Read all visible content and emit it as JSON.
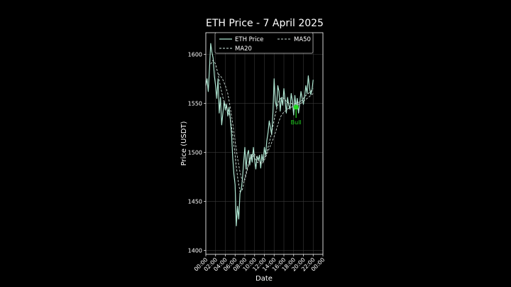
{
  "chart_data": {
    "type": "line",
    "title": "ETH Price - 7 April 2025",
    "xlabel": "Date",
    "ylabel": "Price (USDT)",
    "x_ticks": [
      "00:00",
      "02:00",
      "04:00",
      "06:00",
      "08:00",
      "10:00",
      "12:00",
      "14:00",
      "16:00",
      "18:00",
      "20:00",
      "22:00",
      "00:00"
    ],
    "y_ticks": [
      1400,
      1450,
      1500,
      1550,
      1600
    ],
    "xlim_hours": [
      0,
      24
    ],
    "ylim": [
      1396,
      1622
    ],
    "grid": true,
    "legend_position": "top",
    "series": [
      {
        "name": "ETH Price",
        "style": "solid",
        "color": "#aee6d2",
        "x": [
          0,
          0.25,
          0.5,
          0.75,
          1,
          1.25,
          1.5,
          1.75,
          2,
          2.25,
          2.5,
          2.75,
          3,
          3.25,
          3.5,
          3.75,
          4,
          4.25,
          4.5,
          4.75,
          5,
          5.25,
          5.5,
          5.75,
          6,
          6.25,
          6.5,
          6.75,
          7,
          7.25,
          7.5,
          7.75,
          8,
          8.25,
          8.5,
          8.75,
          9,
          9.25,
          9.5,
          9.75,
          10,
          10.25,
          10.5,
          10.75,
          11,
          11.25,
          11.5,
          11.75,
          12,
          12.25,
          12.5,
          12.75,
          13,
          13.25,
          13.5,
          13.75,
          14,
          14.25,
          14.5,
          14.75,
          15,
          15.25,
          15.5,
          15.75,
          16,
          16.25,
          16.5,
          16.75,
          17,
          17.25,
          17.5,
          17.75,
          18,
          18.25,
          18.5,
          18.75,
          19,
          19.25,
          19.5,
          19.75,
          20,
          20.25,
          20.5,
          20.75,
          21,
          21.25,
          21.5,
          21.75,
          22
        ],
        "y": [
          1568,
          1575,
          1562,
          1585,
          1611,
          1602,
          1596,
          1578,
          1568,
          1555,
          1575,
          1540,
          1556,
          1528,
          1540,
          1552,
          1543,
          1549,
          1537,
          1546,
          1535,
          1520,
          1496,
          1478,
          1467,
          1425,
          1445,
          1432,
          1458,
          1462,
          1472,
          1490,
          1505,
          1483,
          1498,
          1502,
          1487,
          1498,
          1490,
          1505,
          1492,
          1483,
          1496,
          1492,
          1497,
          1484,
          1498,
          1490,
          1505,
          1497,
          1512,
          1520,
          1532,
          1525,
          1518,
          1540,
          1575,
          1552,
          1546,
          1568,
          1562,
          1542,
          1556,
          1548,
          1565,
          1553,
          1540,
          1556,
          1548,
          1544,
          1560,
          1552,
          1538,
          1558,
          1546,
          1555,
          1540,
          1550,
          1562,
          1555,
          1549,
          1557,
          1568,
          1560,
          1578,
          1566,
          1559,
          1563,
          1574
        ]
      },
      {
        "name": "MA20",
        "style": "dashed",
        "color": "#d4ede3",
        "x": [
          1,
          1.5,
          2,
          2.5,
          3,
          3.5,
          4,
          4.5,
          5,
          5.5,
          6,
          6.5,
          7,
          7.5,
          8,
          8.5,
          9,
          9.5,
          10,
          10.5,
          11,
          11.5,
          12,
          12.5,
          13,
          13.5,
          14,
          14.5,
          15,
          15.5,
          16,
          16.5,
          17,
          17.5,
          18,
          18.5,
          19,
          19.5,
          20,
          20.5,
          21,
          21.5,
          22
        ],
        "y": [
          1590,
          1594,
          1590,
          1580,
          1567,
          1556,
          1548,
          1544,
          1535,
          1518,
          1497,
          1475,
          1460,
          1462,
          1474,
          1484,
          1493,
          1498,
          1495,
          1490,
          1489,
          1491,
          1494,
          1500,
          1510,
          1520,
          1533,
          1544,
          1553,
          1556,
          1555,
          1552,
          1550,
          1550,
          1549,
          1550,
          1551,
          1552,
          1555,
          1558,
          1560,
          1562,
          1565
        ]
      },
      {
        "name": "MA50",
        "style": "dashed",
        "color": "#c8d8d2",
        "x": [
          2.5,
          3,
          3.5,
          4,
          4.5,
          5,
          5.5,
          6,
          6.5,
          7,
          7.5,
          8,
          8.5,
          9,
          9.5,
          10,
          10.5,
          11,
          11.5,
          12,
          12.5,
          13,
          13.5,
          14,
          14.5,
          15,
          15.5,
          16,
          16.5,
          17,
          17.5,
          18,
          18.5,
          19,
          19.5,
          20,
          20.5,
          21,
          21.5,
          22
        ],
        "y": [
          1580,
          1578,
          1574,
          1568,
          1560,
          1546,
          1530,
          1512,
          1494,
          1480,
          1470,
          1472,
          1482,
          1492,
          1496,
          1498,
          1494,
          1490,
          1488,
          1492,
          1498,
          1504,
          1510,
          1516,
          1524,
          1532,
          1538,
          1541,
          1543,
          1545,
          1546,
          1547,
          1548,
          1549,
          1550,
          1552,
          1554,
          1556,
          1558,
          1560
        ]
      }
    ],
    "annotations": [
      {
        "text": "Bull",
        "x": 18.5,
        "y": 1546,
        "color": "#22dd22"
      }
    ]
  }
}
